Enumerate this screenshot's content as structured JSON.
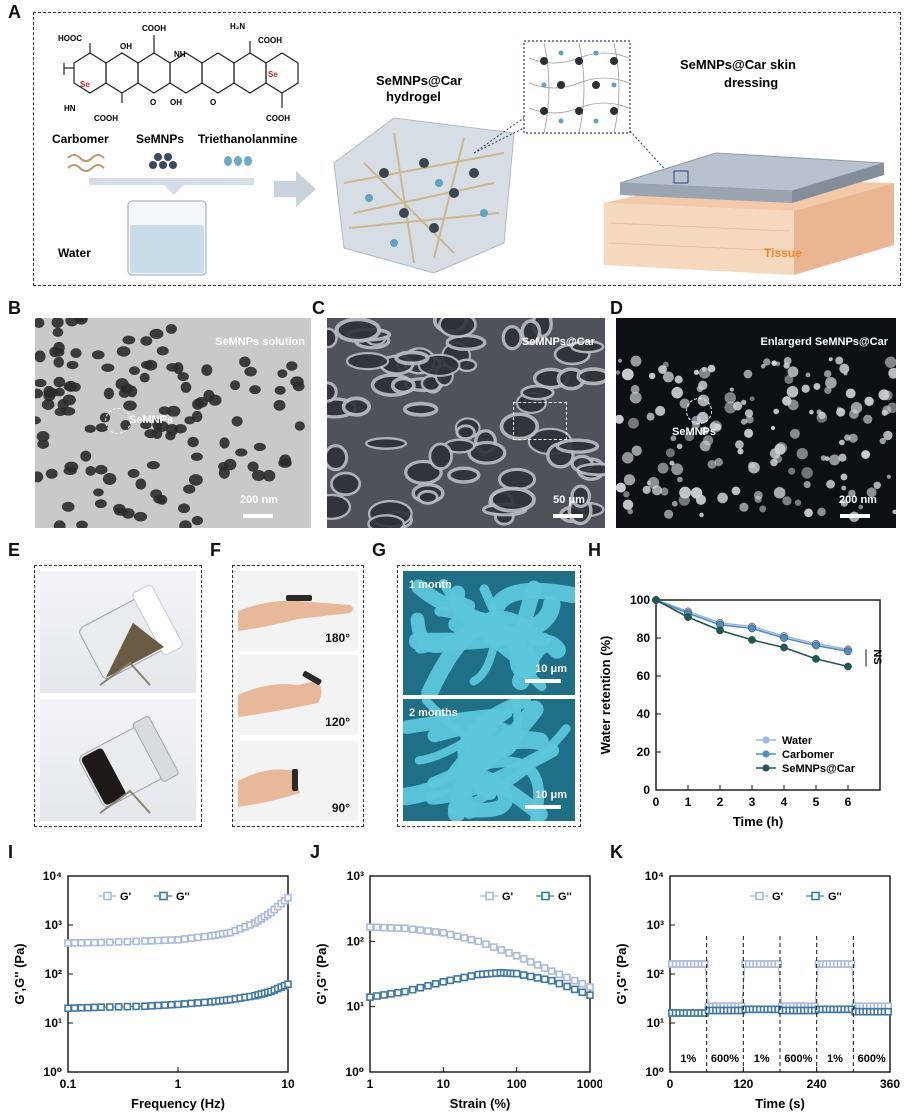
{
  "panels": {
    "A": "A",
    "B": "B",
    "C": "C",
    "D": "D",
    "E": "E",
    "F": "F",
    "G": "G",
    "H": "H",
    "I": "I",
    "J": "J",
    "K": "K"
  },
  "panel_a": {
    "hydrogel_title_1": "SeMNPs@Car",
    "hydrogel_title_2": "hydrogel",
    "dressing_title_1": "SeMNPs@Car skin",
    "dressing_title_2": "dressing",
    "tissue": "Tissue",
    "carbomer": "Carbomer",
    "semnps": "SeMNPs",
    "triethanolamine": "Triethanolanmine",
    "water": "Water",
    "chem": {
      "cooh": "COOH",
      "hooc": "HOOC",
      "oh": "OH",
      "nh": "NH",
      "hn": "HN",
      "h2n": "H₂N",
      "n": "N",
      "o": "O",
      "se": "Se"
    }
  },
  "micrographs": {
    "b_title": "SeMNPs solution",
    "b_marker": "SeMNPs",
    "b_scale": "200 nm",
    "c_title": "SeMNPs@Car",
    "c_scale": "50 μm",
    "d_title": "Enlargerd SeMNPs@Car",
    "d_marker": "SeMNPs",
    "d_scale": "200 nm"
  },
  "panel_f": {
    "angles": [
      "180°",
      "120°",
      "90°"
    ]
  },
  "panel_g": {
    "top": "1 month",
    "bottom": "2 months",
    "scale": "10 μm"
  },
  "chart_data": [
    {
      "id": "H",
      "type": "line",
      "xlabel": "Time (h)",
      "ylabel": "Water retention (%)",
      "xlim": [
        0,
        7
      ],
      "ylim": [
        0,
        100
      ],
      "xticks": [
        0,
        1,
        2,
        3,
        4,
        5,
        6
      ],
      "yticks": [
        0,
        20,
        40,
        60,
        80,
        100
      ],
      "x": [
        0,
        1,
        2,
        3,
        4,
        5,
        6
      ],
      "series": [
        {
          "name": "Water",
          "color": "#9fb5e2",
          "values": [
            100,
            94,
            88,
            86,
            81,
            77,
            74
          ]
        },
        {
          "name": "Carbomer",
          "color": "#4d8fbf",
          "values": [
            100,
            93,
            87,
            85,
            80,
            76,
            73
          ]
        },
        {
          "name": "SeMNPs@Car",
          "color": "#1e5a55",
          "values": [
            100,
            91,
            84,
            79,
            75,
            69,
            65
          ]
        }
      ],
      "annotation": "NS",
      "legend": "bottom-right"
    },
    {
      "id": "I",
      "type": "line",
      "xlabel": "Frequency (Hz)",
      "ylabel": "G',G'' (Pa)",
      "xscale": "log",
      "yscale": "log",
      "xlim": [
        0.1,
        10
      ],
      "ylim": [
        1,
        10000
      ],
      "xtick_labels": [
        "0.1",
        "1",
        "10"
      ],
      "ytick_labels": [
        "10⁰",
        "10¹",
        "10²",
        "10³",
        "10⁴"
      ],
      "legend": "top-left",
      "series": [
        {
          "name": "G'",
          "color": "#a9b9e0",
          "points": [
            [
              0.1,
              430
            ],
            [
              0.2,
              440
            ],
            [
              0.5,
              470
            ],
            [
              1,
              500
            ],
            [
              2,
              600
            ],
            [
              3,
              700
            ],
            [
              5,
              1100
            ],
            [
              7,
              1800
            ],
            [
              10,
              3600
            ]
          ]
        },
        {
          "name": "G''",
          "color": "#3e77a8",
          "points": [
            [
              0.1,
              20
            ],
            [
              0.2,
              21
            ],
            [
              0.5,
              22
            ],
            [
              1,
              24
            ],
            [
              2,
              27
            ],
            [
              3,
              30
            ],
            [
              5,
              36
            ],
            [
              7,
              44
            ],
            [
              10,
              62
            ]
          ]
        }
      ]
    },
    {
      "id": "J",
      "type": "line",
      "xlabel": "Strain (%)",
      "ylabel": "G',G'' (Pa)",
      "xscale": "log",
      "yscale": "log",
      "xlim": [
        1,
        1000
      ],
      "ylim": [
        1,
        1000
      ],
      "xtick_labels": [
        "1",
        "10",
        "100",
        "1000"
      ],
      "ytick_labels": [
        "10⁰",
        "10¹",
        "10²",
        "10³"
      ],
      "legend": "top-right",
      "series": [
        {
          "name": "G'",
          "color": "#a9b9e0",
          "points": [
            [
              1,
              165
            ],
            [
              3,
              158
            ],
            [
              10,
              135
            ],
            [
              30,
              100
            ],
            [
              100,
              60
            ],
            [
              300,
              35
            ],
            [
              1000,
              20
            ]
          ]
        },
        {
          "name": "G''",
          "color": "#3e77a8",
          "points": [
            [
              1,
              14
            ],
            [
              3,
              17
            ],
            [
              10,
              24
            ],
            [
              30,
              31
            ],
            [
              60,
              33
            ],
            [
              100,
              32
            ],
            [
              300,
              25
            ],
            [
              1000,
              15
            ]
          ]
        }
      ]
    },
    {
      "id": "K",
      "type": "line",
      "xlabel": "Time (s)",
      "ylabel": "G',G'' (Pa)",
      "yscale": "log",
      "xlim": [
        0,
        360
      ],
      "ylim": [
        1,
        10000
      ],
      "xticks": [
        0,
        120,
        240,
        360
      ],
      "ytick_labels": [
        "10⁰",
        "10¹",
        "10²",
        "10³",
        "10⁴"
      ],
      "legend": "top",
      "step_boundaries": [
        60,
        120,
        180,
        240,
        300
      ],
      "step_labels": [
        "1%",
        "600%",
        "1%",
        "600%",
        "1%",
        "600%"
      ],
      "series": [
        {
          "name": "G'",
          "color": "#a9b9e0",
          "segments": [
            [
              0,
              60,
              160
            ],
            [
              60,
              120,
              22
            ],
            [
              120,
              180,
              160
            ],
            [
              180,
              240,
              22
            ],
            [
              240,
              300,
              160
            ],
            [
              300,
              360,
              22
            ]
          ]
        },
        {
          "name": "G''",
          "color": "#3e77a8",
          "segments": [
            [
              0,
              60,
              16
            ],
            [
              60,
              120,
              18
            ],
            [
              120,
              180,
              19
            ],
            [
              180,
              240,
              18
            ],
            [
              240,
              300,
              19
            ],
            [
              300,
              360,
              17
            ]
          ]
        }
      ]
    }
  ]
}
